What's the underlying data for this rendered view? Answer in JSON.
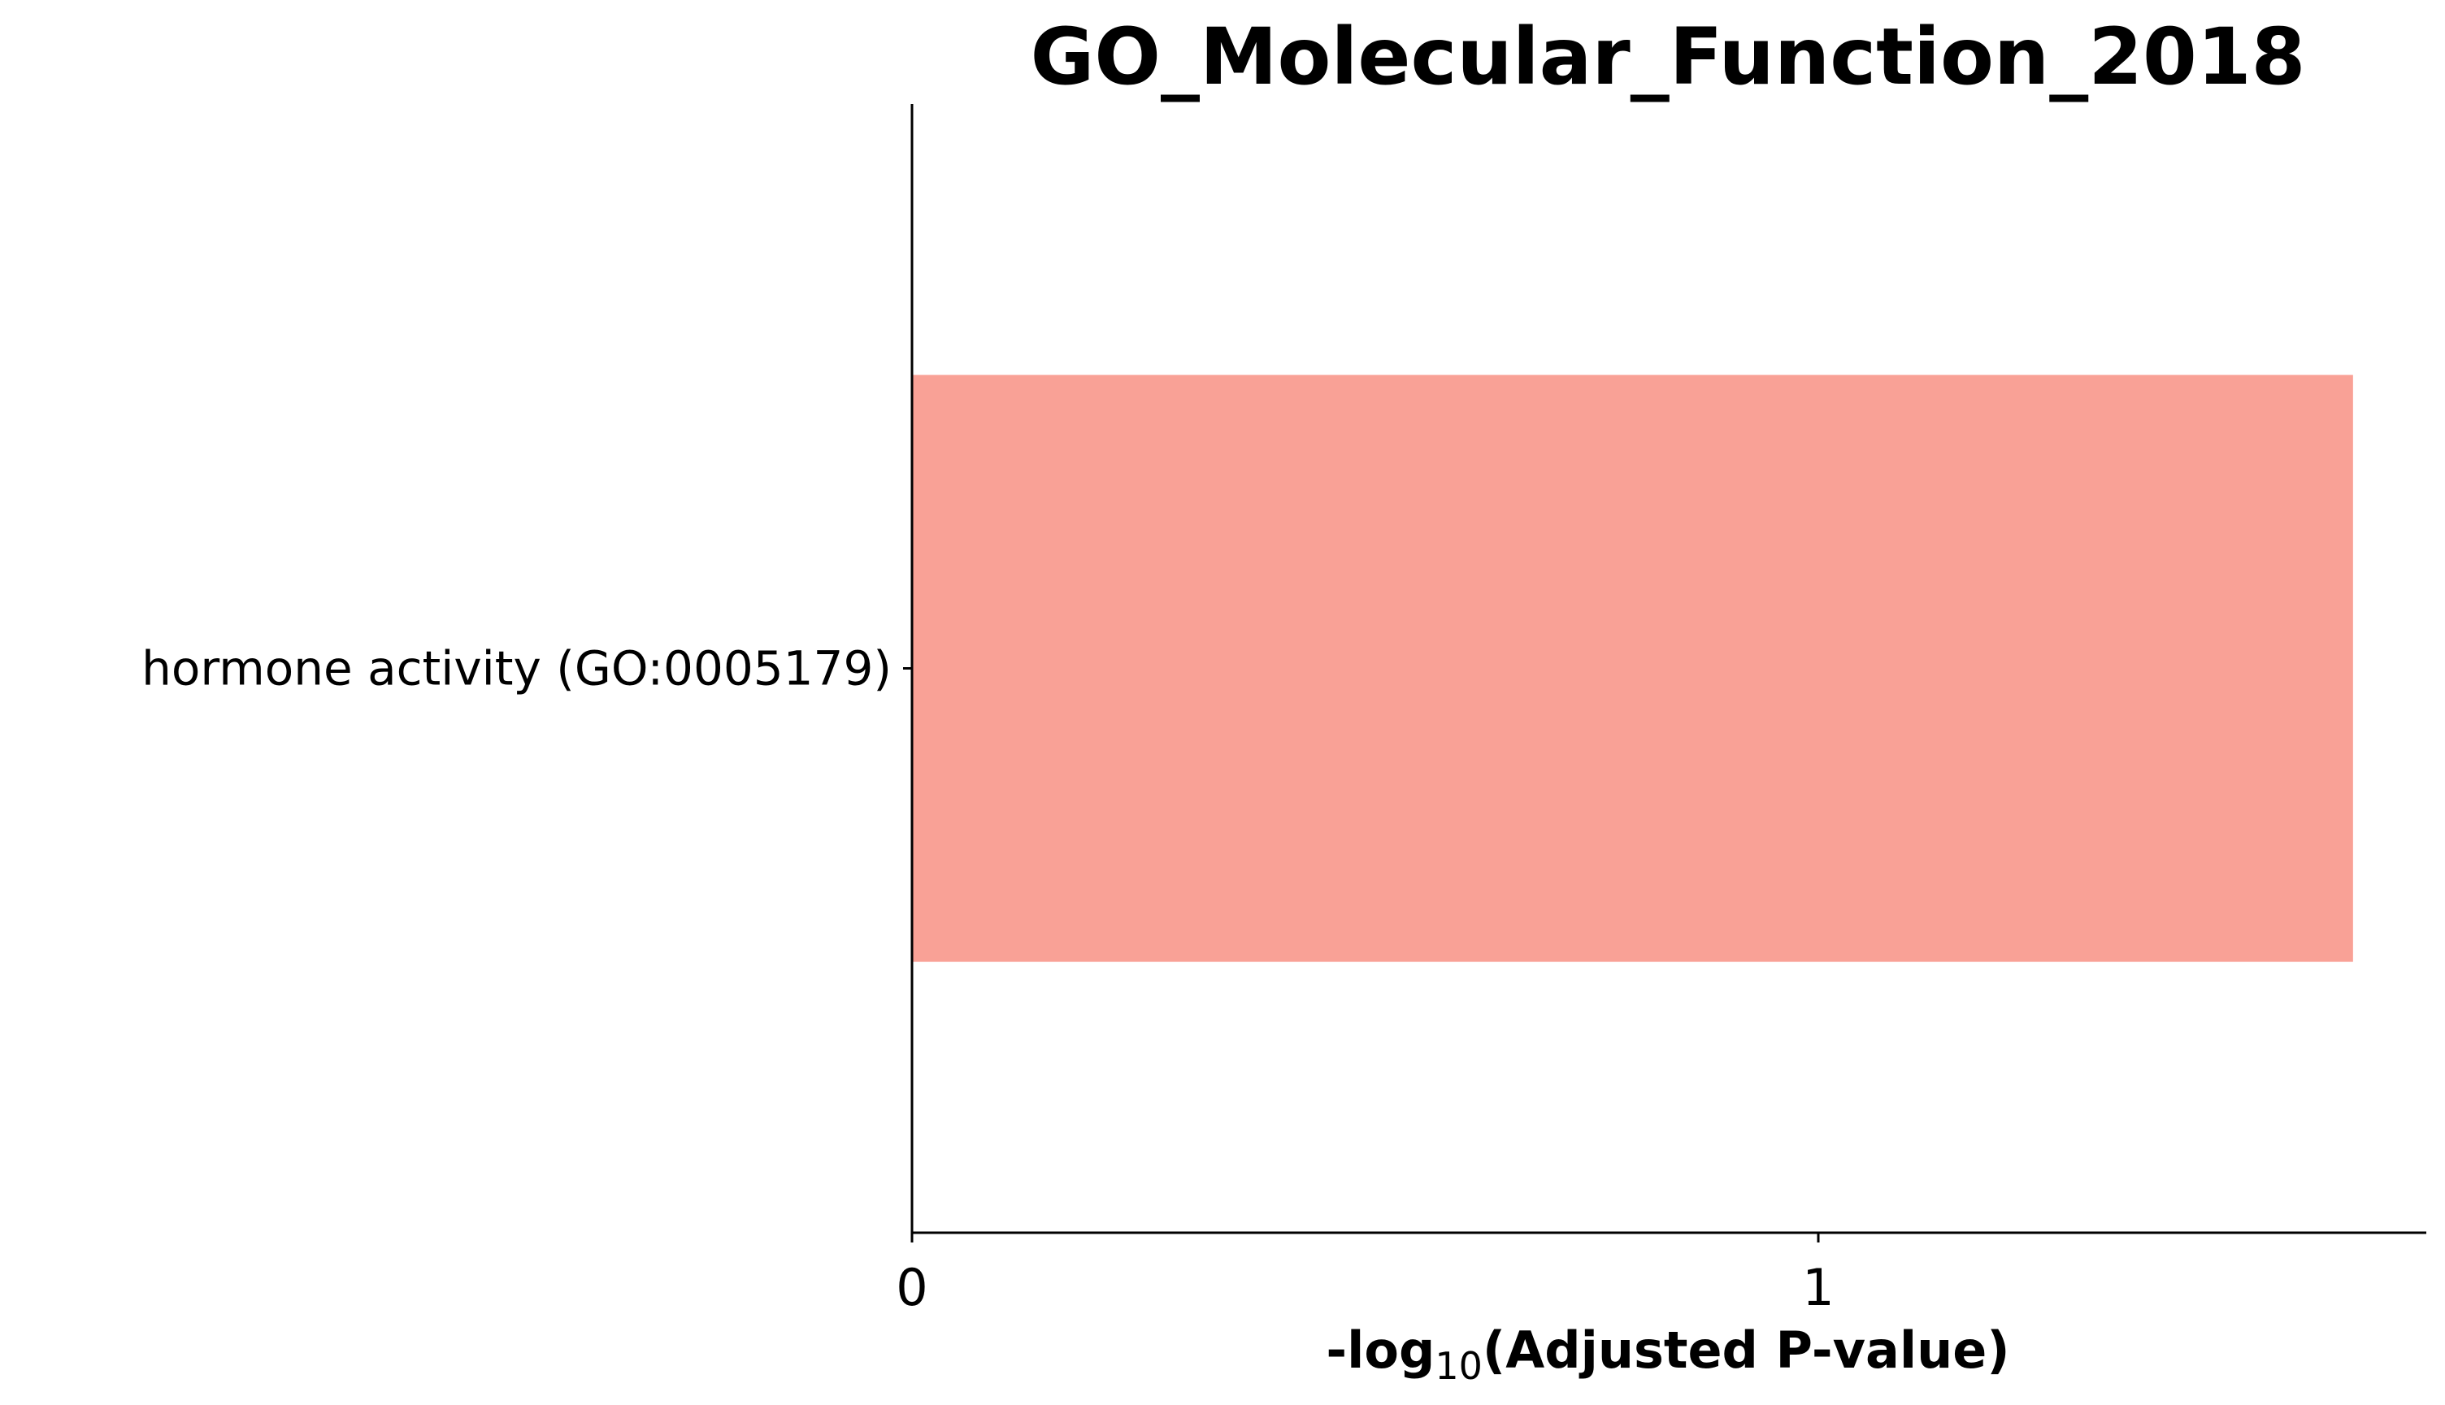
{
  "chart_data": {
    "type": "bar",
    "orientation": "horizontal",
    "title": "GO_Molecular_Function_2018",
    "categories": [
      "hormone activity (GO:0005179)"
    ],
    "values": [
      1.59
    ],
    "bar_color": "#f9a196",
    "xlabel": {
      "prefix": "-log",
      "subscript": "10",
      "suffix": "(Adjusted P-value)"
    },
    "xticks": [
      {
        "value": 0,
        "label": "0"
      },
      {
        "value": 1,
        "label": "1"
      }
    ],
    "xlim": [
      0,
      1.67
    ],
    "grid": false
  }
}
